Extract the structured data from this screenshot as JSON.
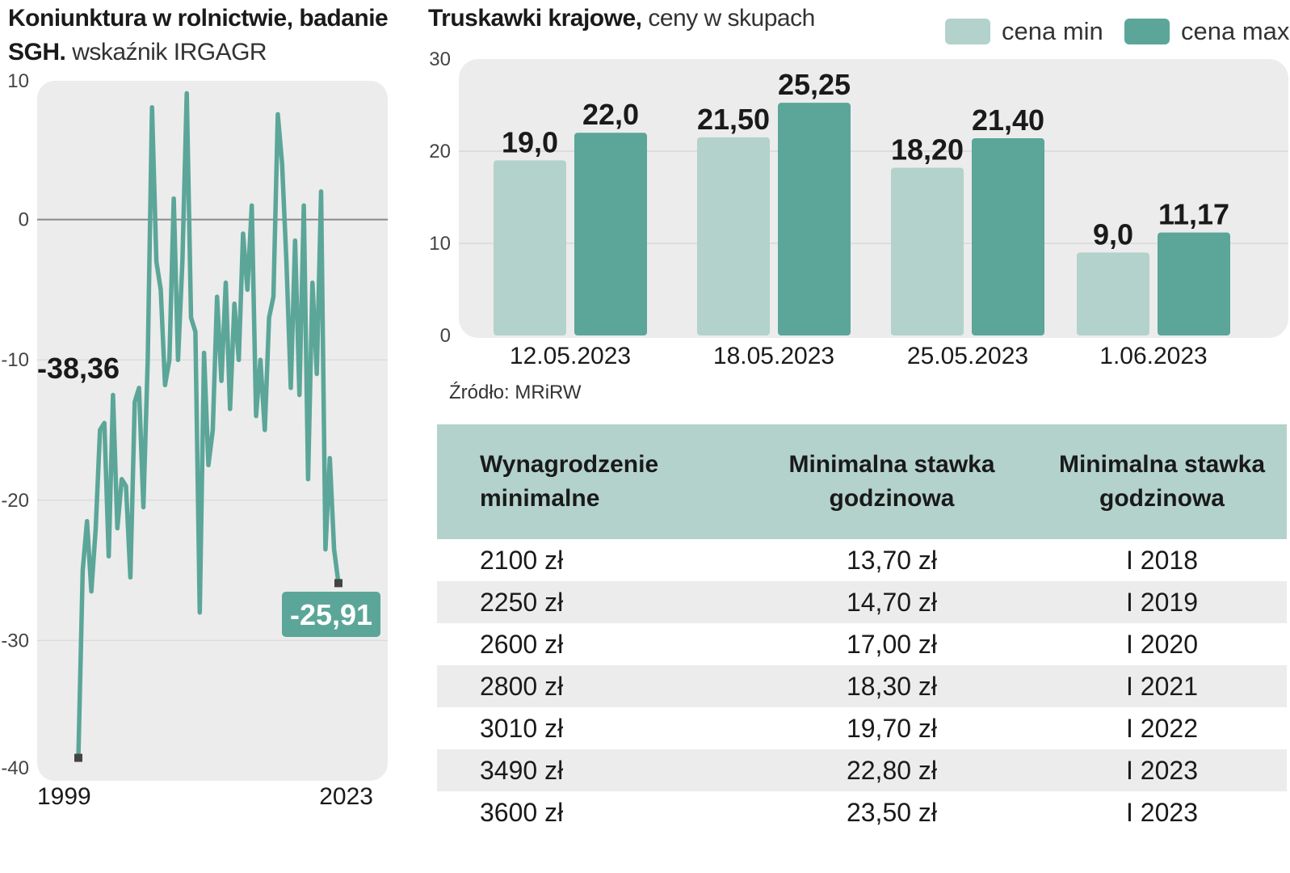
{
  "left_chart": {
    "title_bold": "Koniunktura w rolnictwie, badanie SGH.",
    "title_light": "wskaźnik IRGAGR",
    "line_color": "#5ba698",
    "chart_data": {
      "type": "line",
      "title": "Koniunktura w rolnictwie, badanie SGH. wskaźnik IRGAGR",
      "x_start_label": "1999",
      "x_end_label": "2023",
      "ylim": [
        -40,
        10
      ],
      "y_ticks": [
        10,
        0,
        -10,
        -20,
        -30,
        -40
      ],
      "y_tick_labels": [
        "10",
        "0",
        "-10",
        "-20",
        "-30",
        "-40"
      ],
      "values": [
        -38.36,
        -25,
        -21.5,
        -26.5,
        -22,
        -15,
        -14.5,
        -24,
        -12.5,
        -22,
        -18.5,
        -19,
        -25.5,
        -13,
        -12,
        -20.5,
        -10,
        8,
        -3,
        -5,
        -11.8,
        -10,
        1.5,
        -10,
        -3,
        9,
        -7,
        -8,
        -28,
        -9.5,
        -17.5,
        -15,
        -5.5,
        -11.5,
        -4.5,
        -13.5,
        -6,
        -10,
        -1,
        -5,
        1,
        -14,
        -10,
        -15,
        -7,
        -5.5,
        7.5,
        4,
        -3,
        -12,
        -1.5,
        -12.5,
        1,
        -18.5,
        -4.5,
        -11,
        2,
        -23.5,
        -17,
        -23.5,
        -25.91
      ],
      "start_label": "-38,36",
      "end_label": "-25,91",
      "grid": true
    }
  },
  "right_chart": {
    "title_bold": "Truskawki krajowe,",
    "title_light": "ceny w skupach",
    "source": "Źródło: MRiRW",
    "colors": {
      "min": "#b3d2cb",
      "max": "#5ba698"
    },
    "chart_data": {
      "type": "bar",
      "title": "Truskawki krajowe, ceny w skupach",
      "categories": [
        "12.05.2023",
        "18.05.2023",
        "25.05.2023",
        "1.06.2023"
      ],
      "series": [
        {
          "name": "cena min",
          "values": [
            19.0,
            21.5,
            18.2,
            9.0
          ],
          "labels": [
            "19,0",
            "21,50",
            "18,20",
            "9,0"
          ]
        },
        {
          "name": "cena max",
          "values": [
            22.0,
            25.25,
            21.4,
            11.17
          ],
          "labels": [
            "22,0",
            "25,25",
            "21,40",
            "11,17"
          ]
        }
      ],
      "ylim": [
        0,
        30
      ],
      "y_ticks": [
        0,
        10,
        20,
        30
      ],
      "y_tick_labels": [
        "0",
        "10",
        "20",
        "30"
      ],
      "legend": "top-right"
    }
  },
  "table": {
    "headers": [
      "Wynagrodzenie minimalne",
      "Minimalna stawka godzinowa",
      "Minimalna stawka godzinowa"
    ],
    "rows": [
      [
        "2100 zł",
        "13,70 zł",
        "I 2018"
      ],
      [
        "2250 zł",
        "14,70 zł",
        "I 2019"
      ],
      [
        "2600 zł",
        "17,00 zł",
        "I 2020"
      ],
      [
        "2800 zł",
        "18,30 zł",
        "I 2021"
      ],
      [
        "3010 zł",
        "19,70 zł",
        "I 2022"
      ],
      [
        "3490 zł",
        "22,80 zł",
        "I 2023"
      ],
      [
        "3600 zł",
        "23,50 zł",
        "I 2023"
      ]
    ]
  }
}
